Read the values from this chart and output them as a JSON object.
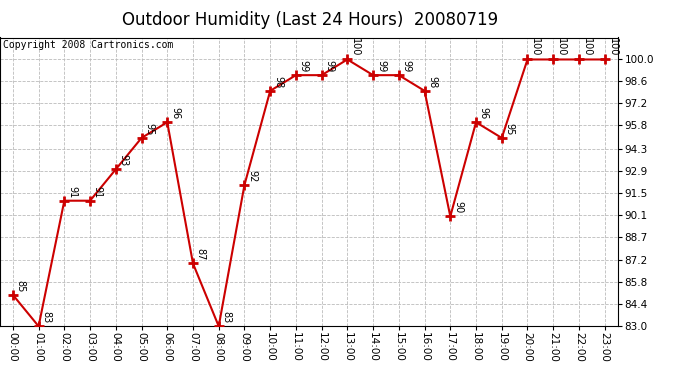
{
  "title": "Outdoor Humidity (Last 24 Hours)  20080719",
  "copyright": "Copyright 2008 Cartronics.com",
  "x_labels": [
    "00:00",
    "01:00",
    "02:00",
    "03:00",
    "04:00",
    "05:00",
    "06:00",
    "07:00",
    "08:00",
    "09:00",
    "10:00",
    "11:00",
    "12:00",
    "13:00",
    "14:00",
    "15:00",
    "16:00",
    "17:00",
    "18:00",
    "19:00",
    "20:00",
    "21:00",
    "22:00",
    "23:00"
  ],
  "y_values": [
    85,
    83,
    91,
    91,
    93,
    95,
    96,
    87,
    83,
    92,
    98,
    99,
    99,
    100,
    99,
    99,
    98,
    90,
    96,
    95,
    100,
    100,
    100,
    100
  ],
  "ylim_min": 83.0,
  "ylim_max": 101.4,
  "yticks": [
    83.0,
    84.4,
    85.8,
    87.2,
    88.7,
    90.1,
    91.5,
    92.9,
    94.3,
    95.8,
    97.2,
    98.6,
    100.0
  ],
  "line_color": "#cc0000",
  "marker": "+",
  "marker_size": 7,
  "marker_linewidth": 2,
  "line_width": 1.5,
  "bg_color": "#ffffff",
  "grid_color": "#bbbbbb",
  "font_color": "#000000",
  "title_fontsize": 12,
  "copyright_fontsize": 7,
  "label_fontsize": 7,
  "tick_fontsize": 7.5
}
